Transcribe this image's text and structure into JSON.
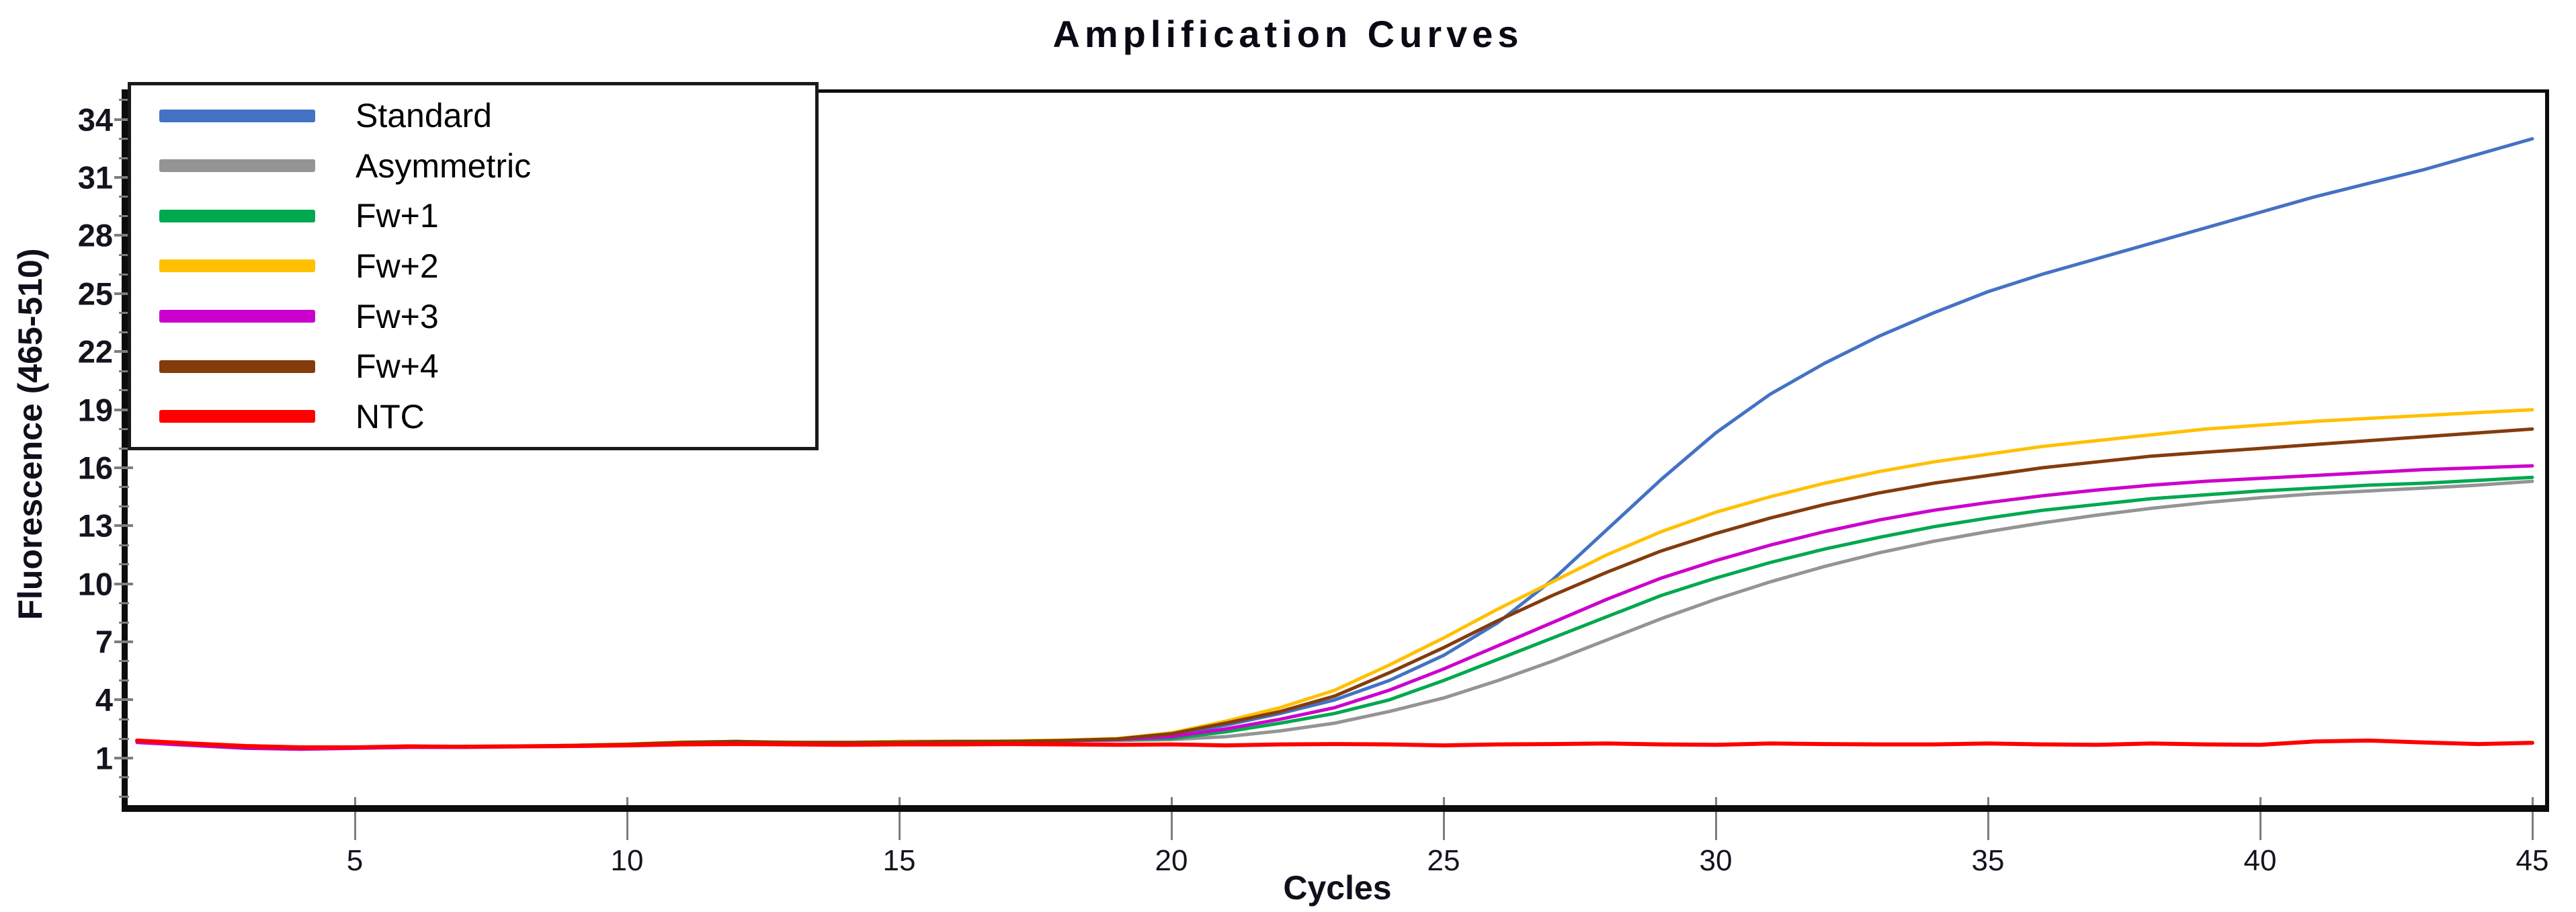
{
  "chart": {
    "title": "Amplification Curves",
    "x_axis": {
      "label": "Cycles"
    },
    "y_axis": {
      "label": "Fluorescence (465-510)"
    },
    "legend": {
      "position": "upper-left"
    }
  },
  "chart_data": {
    "type": "line",
    "title": "Amplification Curves",
    "xlabel": "Cycles",
    "ylabel": "Fluorescence (465-510)",
    "xlim": [
      0.75,
      45.3
    ],
    "ylim": [
      -1.5,
      35.3
    ],
    "xticks": [
      5,
      10,
      15,
      20,
      25,
      30,
      35,
      40,
      45
    ],
    "yticks": [
      1,
      4,
      7,
      10,
      13,
      16,
      19,
      22,
      25,
      28,
      31,
      34
    ],
    "grid": false,
    "legend_position": "upper left",
    "x": [
      1,
      2,
      3,
      4,
      5,
      6,
      7,
      8,
      9,
      10,
      11,
      12,
      13,
      14,
      15,
      16,
      17,
      18,
      19,
      20,
      21,
      22,
      23,
      24,
      25,
      26,
      27,
      28,
      29,
      30,
      31,
      32,
      33,
      34,
      35,
      36,
      37,
      38,
      39,
      40,
      41,
      42,
      43,
      44,
      45
    ],
    "series": [
      {
        "name": "Standard",
        "color": "#4472C4",
        "values": [
          1.9,
          1.75,
          1.6,
          1.55,
          1.55,
          1.6,
          1.6,
          1.6,
          1.65,
          1.7,
          1.8,
          1.85,
          1.8,
          1.8,
          1.85,
          1.85,
          1.85,
          1.9,
          1.95,
          2.2,
          2.7,
          3.3,
          4.0,
          5.0,
          6.3,
          8.0,
          10.2,
          12.8,
          15.4,
          17.8,
          19.8,
          21.4,
          22.8,
          24.0,
          25.1,
          26.0,
          26.8,
          27.6,
          28.4,
          29.2,
          30.0,
          30.7,
          31.4,
          32.2,
          33.0
        ]
      },
      {
        "name": "Asymmetric",
        "color": "#949494",
        "values": [
          1.9,
          1.75,
          1.62,
          1.55,
          1.55,
          1.6,
          1.6,
          1.6,
          1.65,
          1.7,
          1.78,
          1.82,
          1.8,
          1.8,
          1.82,
          1.85,
          1.85,
          1.88,
          1.9,
          1.95,
          2.1,
          2.4,
          2.8,
          3.4,
          4.1,
          5.0,
          6.0,
          7.1,
          8.2,
          9.2,
          10.1,
          10.9,
          11.6,
          12.2,
          12.7,
          13.15,
          13.55,
          13.9,
          14.2,
          14.45,
          14.65,
          14.8,
          14.95,
          15.1,
          15.3
        ]
      },
      {
        "name": "Fw+1",
        "color": "#00A84F",
        "values": [
          1.85,
          1.7,
          1.58,
          1.5,
          1.52,
          1.56,
          1.58,
          1.6,
          1.62,
          1.68,
          1.78,
          1.82,
          1.8,
          1.78,
          1.82,
          1.84,
          1.86,
          1.9,
          1.95,
          2.0,
          2.35,
          2.8,
          3.3,
          4.0,
          5.0,
          6.1,
          7.2,
          8.3,
          9.4,
          10.3,
          11.1,
          11.8,
          12.4,
          12.95,
          13.4,
          13.8,
          14.1,
          14.4,
          14.6,
          14.8,
          14.95,
          15.1,
          15.2,
          15.35,
          15.5
        ]
      },
      {
        "name": "Fw+2",
        "color": "#FFC000",
        "values": [
          1.85,
          1.7,
          1.6,
          1.55,
          1.55,
          1.6,
          1.6,
          1.62,
          1.65,
          1.72,
          1.82,
          1.85,
          1.82,
          1.8,
          1.85,
          1.85,
          1.88,
          1.92,
          2.0,
          2.3,
          2.9,
          3.6,
          4.5,
          5.8,
          7.2,
          8.7,
          10.1,
          11.5,
          12.7,
          13.7,
          14.5,
          15.2,
          15.8,
          16.3,
          16.7,
          17.1,
          17.4,
          17.7,
          18.0,
          18.2,
          18.4,
          18.55,
          18.7,
          18.85,
          19.0
        ]
      },
      {
        "name": "Fw+3",
        "color": "#CC00CC",
        "values": [
          1.8,
          1.65,
          1.5,
          1.45,
          1.5,
          1.55,
          1.55,
          1.58,
          1.6,
          1.65,
          1.75,
          1.8,
          1.78,
          1.78,
          1.8,
          1.82,
          1.85,
          1.88,
          1.95,
          2.1,
          2.5,
          3.0,
          3.6,
          4.5,
          5.6,
          6.8,
          8.0,
          9.2,
          10.3,
          11.2,
          12.0,
          12.7,
          13.3,
          13.8,
          14.2,
          14.55,
          14.85,
          15.1,
          15.3,
          15.45,
          15.6,
          15.75,
          15.9,
          16.0,
          16.1
        ]
      },
      {
        "name": "Fw+4",
        "color": "#843C0C",
        "values": [
          1.9,
          1.72,
          1.58,
          1.52,
          1.55,
          1.58,
          1.6,
          1.6,
          1.65,
          1.7,
          1.8,
          1.85,
          1.8,
          1.8,
          1.82,
          1.85,
          1.85,
          1.9,
          1.98,
          2.25,
          2.8,
          3.4,
          4.2,
          5.4,
          6.7,
          8.1,
          9.4,
          10.6,
          11.7,
          12.6,
          13.4,
          14.1,
          14.7,
          15.2,
          15.6,
          16.0,
          16.3,
          16.6,
          16.8,
          17.0,
          17.2,
          17.4,
          17.6,
          17.8,
          18.0
        ]
      },
      {
        "name": "NTC",
        "color": "#FF0000",
        "values": [
          1.9,
          1.75,
          1.62,
          1.55,
          1.55,
          1.6,
          1.58,
          1.6,
          1.62,
          1.65,
          1.7,
          1.72,
          1.7,
          1.68,
          1.7,
          1.7,
          1.72,
          1.7,
          1.68,
          1.7,
          1.65,
          1.7,
          1.72,
          1.7,
          1.65,
          1.7,
          1.72,
          1.75,
          1.7,
          1.68,
          1.75,
          1.72,
          1.7,
          1.7,
          1.75,
          1.7,
          1.68,
          1.75,
          1.7,
          1.68,
          1.85,
          1.9,
          1.8,
          1.72,
          1.78
        ]
      }
    ]
  }
}
